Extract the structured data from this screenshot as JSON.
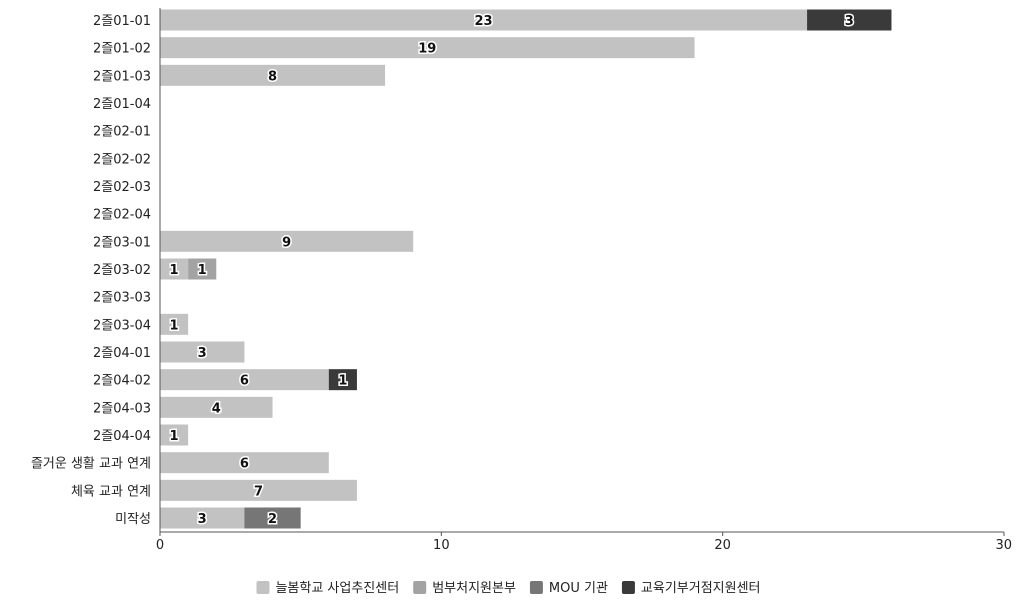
{
  "chart_data": {
    "type": "bar",
    "orientation": "horizontal",
    "stacked": true,
    "categories": [
      "2즐01-01",
      "2즐01-02",
      "2즐01-03",
      "2즐01-04",
      "2즐02-01",
      "2즐02-02",
      "2즐02-03",
      "2즐02-04",
      "2즐03-01",
      "2즐03-02",
      "2즐03-03",
      "2즐03-04",
      "2즐04-01",
      "2즐04-02",
      "2즐04-03",
      "2즐04-04",
      "즐거운 생활 교과 연계",
      "체육 교과 연계",
      "미작성"
    ],
    "series": [
      {
        "name": "늘봄학교 사업추진센터",
        "color": "#c2c2c2",
        "values": [
          23,
          19,
          8,
          0,
          0,
          0,
          0,
          0,
          9,
          1,
          0,
          1,
          3,
          6,
          4,
          1,
          6,
          7,
          3
        ]
      },
      {
        "name": "범부처지원본부",
        "color": "#a3a3a3",
        "values": [
          0,
          0,
          0,
          0,
          0,
          0,
          0,
          0,
          0,
          1,
          0,
          0,
          0,
          0,
          0,
          0,
          0,
          0,
          0
        ]
      },
      {
        "name": "MOU 기관",
        "color": "#767676",
        "values": [
          0,
          0,
          0,
          0,
          0,
          0,
          0,
          0,
          0,
          0,
          0,
          0,
          0,
          0,
          0,
          0,
          0,
          0,
          2
        ]
      },
      {
        "name": "교육기부거점지원센터",
        "color": "#3a3a3a",
        "values": [
          3,
          0,
          0,
          0,
          0,
          0,
          0,
          0,
          0,
          0,
          0,
          0,
          0,
          1,
          0,
          0,
          0,
          0,
          0
        ]
      }
    ],
    "xlim": [
      0,
      30
    ],
    "xticks": [
      0,
      10,
      20,
      30
    ],
    "grid": false,
    "legend_position": "bottom",
    "title": "",
    "xlabel": "",
    "ylabel": ""
  }
}
